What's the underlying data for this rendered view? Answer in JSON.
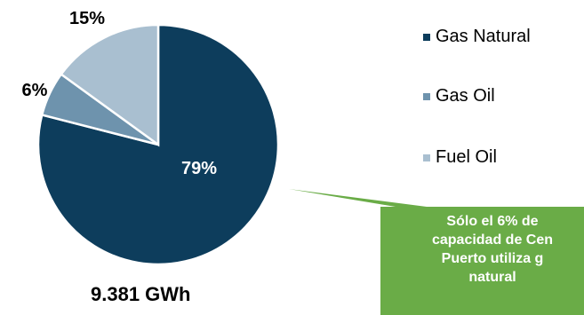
{
  "chart_data": {
    "type": "pie",
    "categories": [
      "Gas Natural",
      "Gas Oil",
      "Fuel Oil"
    ],
    "values": [
      79,
      6,
      15
    ],
    "data_labels": [
      "79%",
      "6%",
      "15%"
    ],
    "colors": [
      "#0d3d5c",
      "#6e93ad",
      "#a9bfd0"
    ],
    "legend_placement": "right",
    "title": "",
    "total_label": "9.381 GWh"
  },
  "callout": {
    "color": "#6aac47",
    "lines": [
      "Sólo el 6% de",
      "capacidad de Cen",
      "Puerto utiliza g",
      "natural"
    ]
  }
}
